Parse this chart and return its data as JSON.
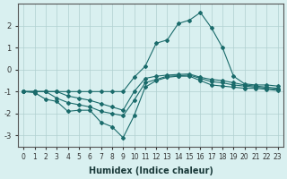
{
  "title": "",
  "xlabel": "Humidex (Indice chaleur)",
  "x": [
    0,
    1,
    2,
    3,
    4,
    5,
    6,
    7,
    8,
    9,
    10,
    11,
    12,
    13,
    14,
    15,
    16,
    17,
    18,
    19,
    20,
    21,
    22,
    23
  ],
  "lines": [
    [
      -1.0,
      -1.05,
      -1.35,
      -1.45,
      -1.9,
      -1.85,
      -1.85,
      -2.4,
      -2.6,
      -3.1,
      -2.1,
      -0.8,
      -0.5,
      -0.35,
      -0.3,
      -0.3,
      -0.5,
      -0.7,
      -0.75,
      -0.8,
      -0.85,
      -0.85,
      -0.9,
      -0.95
    ],
    [
      -1.0,
      -1.0,
      -1.0,
      -1.3,
      -1.5,
      -1.6,
      -1.7,
      -1.9,
      -2.0,
      -2.1,
      -1.4,
      -0.6,
      -0.45,
      -0.3,
      -0.28,
      -0.25,
      -0.4,
      -0.55,
      -0.6,
      -0.7,
      -0.75,
      -0.8,
      -0.85,
      -0.9
    ],
    [
      -1.0,
      -1.0,
      -1.0,
      -1.0,
      -1.2,
      -1.3,
      -1.4,
      -1.55,
      -1.7,
      -1.85,
      -1.0,
      -0.4,
      -0.3,
      -0.25,
      -0.22,
      -0.2,
      -0.35,
      -0.45,
      -0.5,
      -0.6,
      -0.7,
      -0.75,
      -0.8,
      -0.85
    ],
    [
      -1.0,
      -1.0,
      -1.0,
      -1.0,
      -1.0,
      -1.0,
      -1.0,
      -1.0,
      -1.0,
      -1.0,
      -0.35,
      0.15,
      1.2,
      1.35,
      2.1,
      2.25,
      2.6,
      1.9,
      1.0,
      -0.3,
      -0.65,
      -0.7,
      -0.7,
      -0.75
    ]
  ],
  "line_color": "#1a6b6b",
  "marker": "D",
  "marker_size": 2,
  "bg_color": "#d9f0f0",
  "grid_color": "#b0d0d0",
  "ylim": [
    -3.5,
    3.0
  ],
  "yticks": [
    -3,
    -2,
    -1,
    0,
    1,
    2
  ],
  "figsize": [
    3.2,
    2.0
  ],
  "dpi": 100
}
